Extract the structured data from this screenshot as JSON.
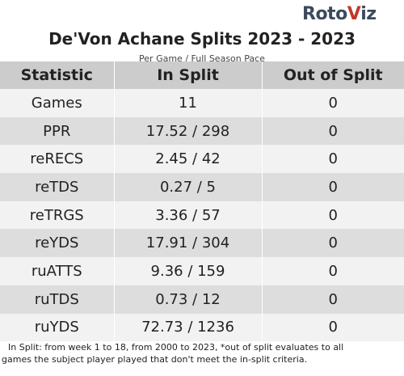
{
  "logo": {
    "part1": "Roto",
    "part2": "V",
    "part3": "iz"
  },
  "title": "De'Von Achane Splits 2023 - 2023",
  "subtitle": "Per Game / Full Season Pace",
  "table": {
    "headers": [
      "Statistic",
      "In Split",
      "Out of Split"
    ],
    "rows": [
      [
        "Games",
        "11",
        "0"
      ],
      [
        "PPR",
        "17.52 / 298",
        "0"
      ],
      [
        "reRECS",
        "2.45 / 42",
        "0"
      ],
      [
        "reTDS",
        "0.27 / 5",
        "0"
      ],
      [
        "reTRGS",
        "3.36 / 57",
        "0"
      ],
      [
        "reYDS",
        "17.91 / 304",
        "0"
      ],
      [
        "ruATTS",
        "9.36 / 159",
        "0"
      ],
      [
        "ruTDS",
        "0.73 / 12",
        "0"
      ],
      [
        "ruYDS",
        "72.73 / 1236",
        "0"
      ]
    ]
  },
  "footnote": {
    "line1": "In Split: from week 1 to 18, from 2000 to 2023,  *out of split evaluates to all",
    "line2": "games the subject player played that don't meet the in-split criteria."
  }
}
